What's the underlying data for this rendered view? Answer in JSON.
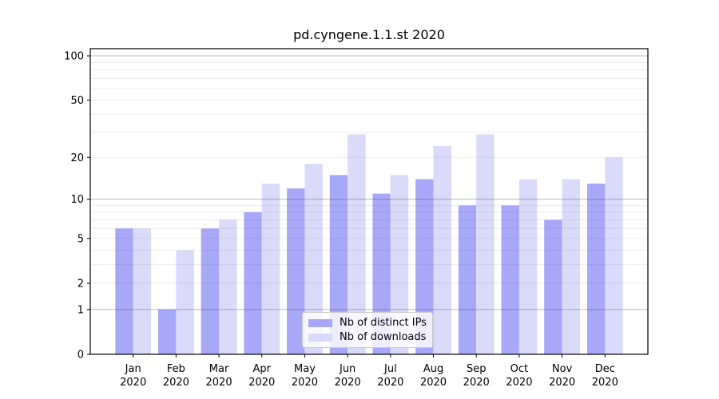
{
  "title": "pd.cyngene.1.1.st 2020",
  "chart_data": {
    "type": "bar",
    "title": "pd.cyngene.1.1.st 2020",
    "categories": [
      "Jan 2020",
      "Feb 2020",
      "Mar 2020",
      "Apr 2020",
      "May 2020",
      "Jun 2020",
      "Jul 2020",
      "Aug 2020",
      "Sep 2020",
      "Oct 2020",
      "Nov 2020",
      "Dec 2020"
    ],
    "series": [
      {
        "name": "Nb of distinct IPs",
        "color": "#a8a8f8",
        "values": [
          6,
          1,
          6,
          8,
          12,
          15,
          11,
          14,
          9,
          9,
          7,
          13
        ]
      },
      {
        "name": "Nb of downloads",
        "color": "#dadafa",
        "values": [
          6,
          4,
          7,
          13,
          18,
          29,
          15,
          24,
          29,
          14,
          14,
          20
        ]
      }
    ],
    "xlabel": "",
    "ylabel": "",
    "y_scale": "log1p",
    "ylim": [
      0,
      100
    ],
    "y_ticks": [
      0,
      1,
      2,
      5,
      10,
      20,
      50,
      100
    ],
    "major_gridlines": [
      1,
      10,
      100
    ],
    "minor_gridlines": [
      2,
      3,
      4,
      5,
      6,
      7,
      8,
      9,
      20,
      30,
      40,
      50,
      60,
      70,
      80,
      90
    ],
    "grid": true,
    "legend_position": "lower-center"
  },
  "legend": {
    "items": [
      {
        "label": "Nb of distinct IPs",
        "color": "#a8a8f8"
      },
      {
        "label": "Nb of downloads",
        "color": "#dadafa"
      }
    ]
  }
}
